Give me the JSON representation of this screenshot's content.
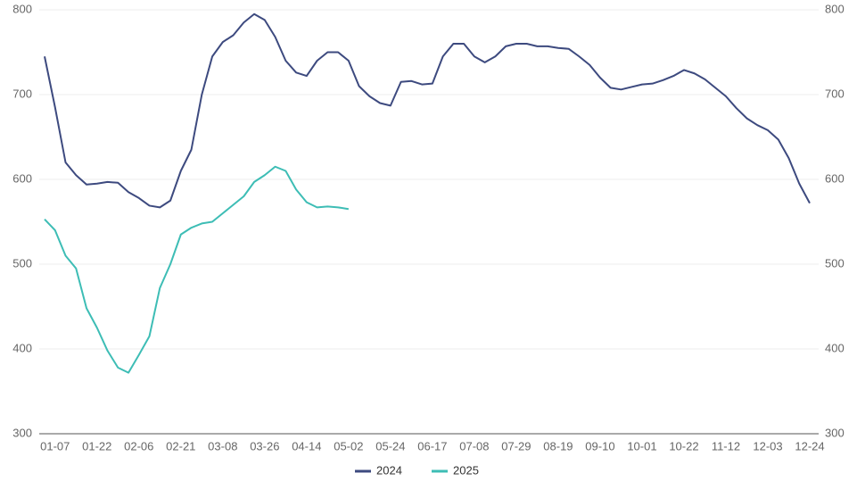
{
  "chart_data": {
    "type": "line",
    "categories": [
      null,
      "01-07",
      null,
      null,
      null,
      "01-22",
      null,
      null,
      null,
      "02-06",
      null,
      null,
      null,
      "02-21",
      null,
      null,
      null,
      "03-08",
      null,
      null,
      null,
      "03-26",
      null,
      null,
      null,
      "04-14",
      null,
      null,
      null,
      "05-02",
      null,
      null,
      null,
      "05-24",
      null,
      null,
      null,
      "06-17",
      null,
      null,
      null,
      "07-08",
      null,
      null,
      null,
      "07-29",
      null,
      null,
      null,
      "08-19",
      null,
      null,
      null,
      "09-10",
      null,
      null,
      null,
      "10-01",
      null,
      null,
      null,
      "10-22",
      null,
      null,
      null,
      "11-12",
      null,
      null,
      null,
      "12-03",
      null,
      null,
      null,
      "12-24"
    ],
    "series": [
      {
        "name": "2024",
        "color": "#3d4a7f",
        "values": [
          745,
          685,
          620,
          605,
          594,
          595,
          597,
          596,
          585,
          578,
          569,
          567,
          575,
          610,
          635,
          700,
          745,
          762,
          770,
          785,
          795,
          788,
          768,
          740,
          726,
          722,
          740,
          750,
          750,
          740,
          710,
          698,
          690,
          687,
          715,
          716,
          712,
          713,
          745,
          760,
          760,
          745,
          738,
          745,
          757,
          760,
          760,
          757,
          757,
          755,
          754,
          745,
          735,
          720,
          708,
          706,
          709,
          712,
          713,
          717,
          722,
          729,
          725,
          718,
          708,
          698,
          684,
          672,
          664,
          658,
          647,
          625,
          595,
          572
        ]
      },
      {
        "name": "2025",
        "color": "#3dbdb5",
        "values": [
          553,
          540,
          510,
          495,
          448,
          425,
          398,
          378,
          372,
          393,
          415,
          472,
          500,
          535,
          543,
          548,
          550,
          560,
          570,
          580,
          597,
          605,
          615,
          610,
          588,
          573,
          567,
          568,
          567,
          565,
          null,
          null,
          null,
          null,
          null,
          null,
          null,
          null,
          null,
          null,
          null,
          null,
          null,
          null,
          null,
          null,
          null,
          null,
          null,
          null,
          null,
          null,
          null,
          null,
          null,
          null,
          null,
          null,
          null,
          null,
          null,
          null,
          null,
          null,
          null,
          null,
          null,
          null,
          null,
          null,
          null,
          null,
          null,
          null
        ]
      }
    ],
    "ylim": [
      300,
      800
    ],
    "yticks": [
      300,
      400,
      500,
      600,
      700,
      800
    ],
    "y2lim": [
      300,
      800
    ],
    "y2ticks": [
      300,
      400,
      500,
      600,
      700,
      800
    ],
    "grid": true,
    "legend": "bottom"
  }
}
